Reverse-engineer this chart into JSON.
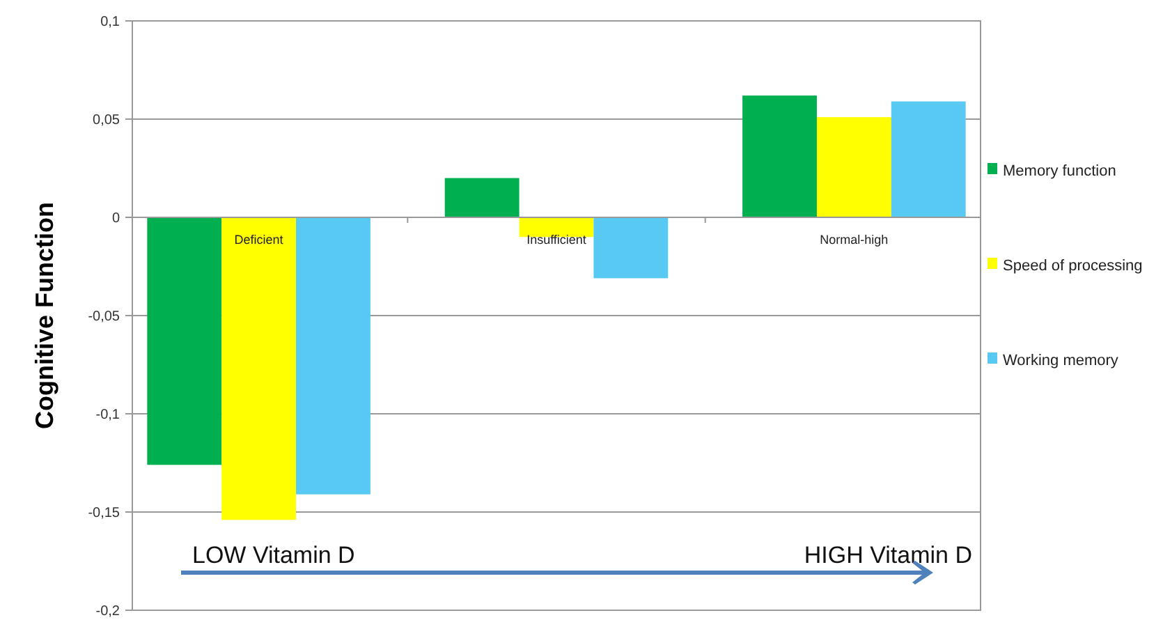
{
  "chart_data": {
    "type": "bar",
    "ylabel": "Cognitive Function",
    "categories": [
      "Deficient",
      "Insufficient",
      "Normal-high"
    ],
    "series": [
      {
        "name": "Memory function",
        "color": "#00b050",
        "values": [
          -0.126,
          0.02,
          0.062
        ]
      },
      {
        "name": "Speed of processing",
        "color": "#ffff00",
        "values": [
          -0.154,
          -0.01,
          0.051
        ]
      },
      {
        "name": "Working memory",
        "color": "#57c9f3",
        "values": [
          -0.141,
          -0.031,
          0.059
        ]
      }
    ],
    "ylim": [
      -0.2,
      0.1
    ],
    "yticks": [
      {
        "value": -0.2,
        "label": "-0,2"
      },
      {
        "value": -0.15,
        "label": "-0,15"
      },
      {
        "value": -0.1,
        "label": "-0,1"
      },
      {
        "value": -0.05,
        "label": "-0,05"
      },
      {
        "value": 0,
        "label": "0"
      },
      {
        "value": 0.05,
        "label": "0,05"
      },
      {
        "value": 0.1,
        "label": "0,1"
      }
    ],
    "grid": "y",
    "legend": "right",
    "annotations": [
      "LOW Vitamin D",
      "HIGH Vitamin D"
    ]
  }
}
